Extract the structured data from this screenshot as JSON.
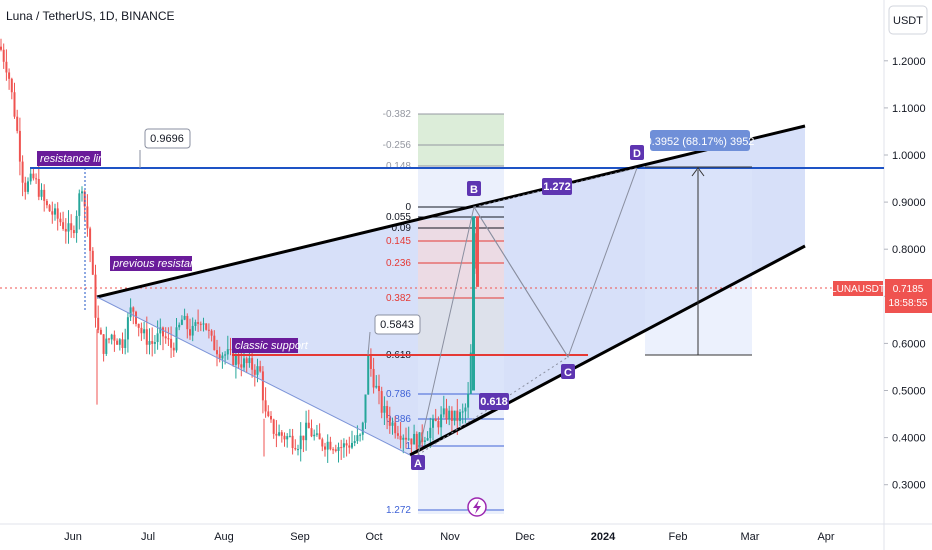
{
  "header": {
    "title": "Luna / TetherUS, 1D, BINANCE",
    "currency": "USDT"
  },
  "price_tag": {
    "symbol": "LUNAUSDT",
    "price": "0.7185",
    "countdown": "18:58:55"
  },
  "colors": {
    "up": "#26a69a",
    "down": "#ef5350",
    "resistance": "#1e53c5",
    "support": "#e53935",
    "label_purple": "#6a1b9a",
    "point_purple": "#5e35b1",
    "wedge_fill": "#c9d6f7",
    "projection": "#6f8fd8",
    "fib_blue": "#3f62d6",
    "fib_red": "#e53935"
  },
  "chart_data": {
    "type": "candlestick",
    "title": "Luna / TetherUS, 1D, BINANCE",
    "x": {
      "tick_labels": [
        "Jun",
        "Jul",
        "Aug",
        "Sep",
        "Oct",
        "Nov",
        "Dec",
        "2024",
        "Feb",
        "Mar",
        "Apr"
      ]
    },
    "y": {
      "unit": "USDT",
      "range": [
        0.23,
        1.29
      ],
      "tick_labels": [
        "1.2000",
        "1.1000",
        "1.0000",
        "0.9000",
        "0.8000",
        "0.7000",
        "0.6000",
        "0.5000",
        "0.4000",
        "0.3000"
      ]
    },
    "last_price": 0.7185,
    "annotations": {
      "resistance_line": {
        "label": "resistance line",
        "price": 0.9696,
        "callout": "0.9696"
      },
      "previous_resistance": {
        "label": "previous resistance"
      },
      "classic_support": {
        "label": "classic support",
        "price": 0.5843,
        "callout": "0.5843"
      },
      "points": [
        "A",
        "B",
        "C",
        "D"
      ],
      "ratio_labels": [
        "1.272",
        "0.618"
      ],
      "projection": {
        "label": "0.3952 (68.17%) 3952",
        "change": 0.3952,
        "percent": 68.17
      }
    },
    "fib_levels": [
      {
        "label": "-0.382",
        "color": "gray"
      },
      {
        "label": "-0.256",
        "color": "gray"
      },
      {
        "label": "0.148",
        "color": "gray"
      },
      {
        "label": "0",
        "color": "black"
      },
      {
        "label": "0.055",
        "color": "black"
      },
      {
        "label": "0.09",
        "color": "black"
      },
      {
        "label": "0.145",
        "color": "red"
      },
      {
        "label": "0.236",
        "color": "red"
      },
      {
        "label": "0.382",
        "color": "red"
      },
      {
        "label": "0.618",
        "color": "black"
      },
      {
        "label": "0.786",
        "color": "blue"
      },
      {
        "label": "0.886",
        "color": "blue"
      },
      {
        "label": "1",
        "color": "blue"
      },
      {
        "label": "1.272",
        "color": "blue"
      }
    ]
  }
}
